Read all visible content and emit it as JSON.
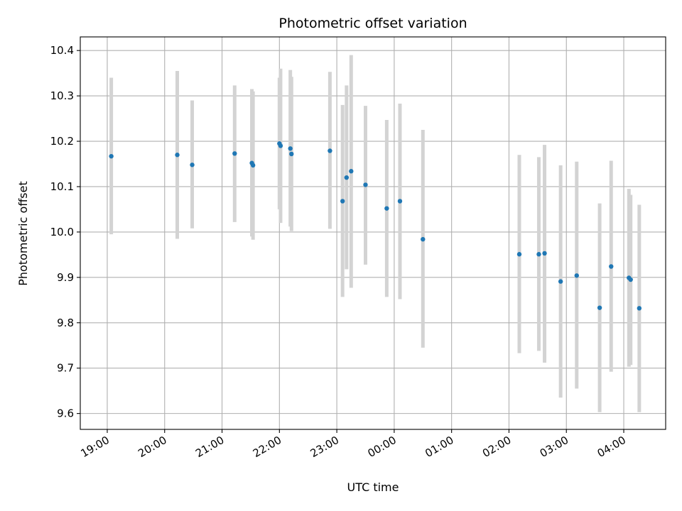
{
  "chart_data": {
    "type": "scatter",
    "title": "Photometric offset variation",
    "xlabel": "UTC time",
    "ylabel": "Photometric offset",
    "x_unit": "UTC time (hours, times after midnight > 24)",
    "xlim": [
      18.53,
      28.73
    ],
    "ylim": [
      9.565,
      10.43
    ],
    "x_ticks": [
      19,
      20,
      21,
      22,
      23,
      24,
      25,
      26,
      27,
      28
    ],
    "x_tick_labels": [
      "19:00",
      "20:00",
      "21:00",
      "22:00",
      "23:00",
      "00:00",
      "01:00",
      "02:00",
      "03:00",
      "04:00"
    ],
    "y_ticks": [
      9.6,
      9.7,
      9.8,
      9.9,
      10.0,
      10.1,
      10.2,
      10.3,
      10.4
    ],
    "y_tick_labels": [
      "9.6",
      "9.7",
      "9.8",
      "9.9",
      "10.0",
      "10.1",
      "10.2",
      "10.3",
      "10.4"
    ],
    "grid": true,
    "colors": {
      "marker": "#1f77b4",
      "errorbar": "#d3d3d3",
      "grid": "#b0b0b0"
    },
    "points": [
      {
        "x": 19.07,
        "y": 10.167,
        "lo": 9.995,
        "hi": 10.34
      },
      {
        "x": 20.22,
        "y": 10.17,
        "lo": 9.985,
        "hi": 10.355
      },
      {
        "x": 20.48,
        "y": 10.148,
        "lo": 10.008,
        "hi": 10.29
      },
      {
        "x": 21.22,
        "y": 10.173,
        "lo": 10.022,
        "hi": 10.323
      },
      {
        "x": 21.52,
        "y": 10.152,
        "lo": 9.99,
        "hi": 10.315
      },
      {
        "x": 21.54,
        "y": 10.147,
        "lo": 9.983,
        "hi": 10.31
      },
      {
        "x": 22.0,
        "y": 10.195,
        "lo": 10.05,
        "hi": 10.34
      },
      {
        "x": 22.02,
        "y": 10.19,
        "lo": 10.02,
        "hi": 10.36
      },
      {
        "x": 22.19,
        "y": 10.184,
        "lo": 10.012,
        "hi": 10.357
      },
      {
        "x": 22.21,
        "y": 10.172,
        "lo": 10.002,
        "hi": 10.342
      },
      {
        "x": 22.88,
        "y": 10.179,
        "lo": 10.007,
        "hi": 10.353
      },
      {
        "x": 23.1,
        "y": 10.068,
        "lo": 9.857,
        "hi": 10.28
      },
      {
        "x": 23.17,
        "y": 10.12,
        "lo": 9.918,
        "hi": 10.323
      },
      {
        "x": 23.25,
        "y": 10.134,
        "lo": 9.877,
        "hi": 10.39
      },
      {
        "x": 23.5,
        "y": 10.104,
        "lo": 9.928,
        "hi": 10.278
      },
      {
        "x": 23.87,
        "y": 10.052,
        "lo": 9.857,
        "hi": 10.247
      },
      {
        "x": 24.1,
        "y": 10.068,
        "lo": 9.852,
        "hi": 10.283
      },
      {
        "x": 24.5,
        "y": 9.984,
        "lo": 9.745,
        "hi": 10.225
      },
      {
        "x": 26.18,
        "y": 9.951,
        "lo": 9.733,
        "hi": 10.17
      },
      {
        "x": 26.52,
        "y": 9.951,
        "lo": 9.738,
        "hi": 10.165
      },
      {
        "x": 26.62,
        "y": 9.953,
        "lo": 9.712,
        "hi": 10.192
      },
      {
        "x": 26.9,
        "y": 9.891,
        "lo": 9.635,
        "hi": 10.147
      },
      {
        "x": 27.18,
        "y": 9.904,
        "lo": 9.655,
        "hi": 10.155
      },
      {
        "x": 27.58,
        "y": 9.833,
        "lo": 9.603,
        "hi": 10.063
      },
      {
        "x": 27.78,
        "y": 9.924,
        "lo": 9.692,
        "hi": 10.157
      },
      {
        "x": 28.09,
        "y": 9.899,
        "lo": 9.703,
        "hi": 10.095
      },
      {
        "x": 28.12,
        "y": 9.895,
        "lo": 9.707,
        "hi": 10.082
      },
      {
        "x": 28.27,
        "y": 9.832,
        "lo": 9.603,
        "hi": 10.06
      }
    ]
  }
}
